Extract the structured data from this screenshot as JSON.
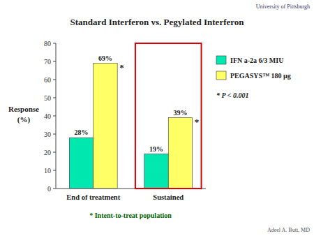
{
  "chart_data": {
    "type": "bar",
    "title": "Standard Interferon vs. Pegylated Interferon",
    "categories": [
      "End of treatment",
      "Sustained"
    ],
    "series": [
      {
        "name": "IFN a-2a 6/3 MIU",
        "color": "#00E8B0",
        "values": [
          28,
          19
        ],
        "value_labels": [
          "28%",
          "19%"
        ]
      },
      {
        "name": "PEGASYS™ 180 μg",
        "color": "#FFFF66",
        "values": [
          69,
          39
        ],
        "value_labels": [
          "69%",
          "39%"
        ],
        "significance_labels": [
          "*",
          "*"
        ]
      }
    ],
    "ylabel": [
      "Response",
      "(%)"
    ],
    "ylim": [
      0,
      80
    ],
    "yticks": [
      0,
      10,
      20,
      30,
      40,
      50,
      60,
      70,
      80
    ],
    "annotations": [
      "* P < 0.001",
      "* Intent-to-treat population",
      "Adeel A. Butt, MD",
      "University of Pittsburgh"
    ],
    "grid": false,
    "legend": "right",
    "data_labels": true
  }
}
